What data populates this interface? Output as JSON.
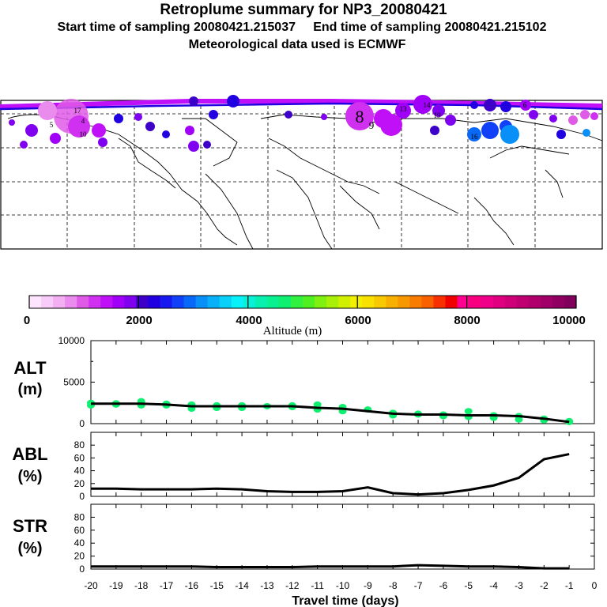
{
  "header": {
    "title": "Retroplume summary for NP3_20080421",
    "line1": "Start time of sampling 20080421.215037     End time of sampling 20080421.215102",
    "line2": "Meteorological data used is ECMWF"
  },
  "colorbar": {
    "label": "Altitude (m)",
    "ticks": [
      "0",
      "2000",
      "4000",
      "6000",
      "8000",
      "10000"
    ],
    "colors": [
      "#fde6fd",
      "#f8ccf8",
      "#f2b0f2",
      "#ea8cee",
      "#e05ae8",
      "#d030f0",
      "#c010f8",
      "#a000f8",
      "#8000f0",
      "#3c00c8",
      "#2000e0",
      "#1818f0",
      "#1040f8",
      "#0868f8",
      "#0890f8",
      "#08b0f8",
      "#08d0f8",
      "#08f0f8",
      "#08f0d8",
      "#08f0b0",
      "#08f090",
      "#10f070",
      "#30f040",
      "#50f020",
      "#80f010",
      "#a8f008",
      "#d0f000",
      "#f0f000",
      "#f8e000",
      "#f8c800",
      "#f8b000",
      "#f89800",
      "#f87c00",
      "#f86000",
      "#f83000",
      "#f00000",
      "#ff0090",
      "#f80080",
      "#f00088",
      "#e00080",
      "#d00078",
      "#c00070",
      "#b0006c",
      "#a00068",
      "#900060",
      "#80005c"
    ]
  },
  "map": {
    "labels": [
      {
        "text": "8",
        "big": true
      },
      {
        "text": "16",
        "big": false
      },
      {
        "text": "9",
        "big": false
      },
      {
        "text": "4",
        "big": false
      },
      {
        "text": "5",
        "big": false
      },
      {
        "text": "17",
        "big": false
      },
      {
        "text": "19",
        "big": false
      },
      {
        "text": "13",
        "big": false
      },
      {
        "text": "6",
        "big": false
      },
      {
        "text": "14",
        "big": false
      },
      {
        "text": "10",
        "big": false
      }
    ]
  },
  "chart_data": {
    "type": "line",
    "x": [
      -20,
      -19,
      -18,
      -17,
      -16,
      -15,
      -14,
      -13,
      -12,
      -11,
      -10,
      -9,
      -8,
      -7,
      -6,
      -5,
      -4,
      -3,
      -2,
      -1
    ],
    "xlim": [
      -20,
      0
    ],
    "xticks": [
      "-20",
      "-19",
      "-18",
      "-17",
      "-16",
      "-15",
      "-14",
      "-13",
      "-12",
      "-11",
      "-10",
      "-9",
      "-8",
      "-7",
      "-6",
      "-5",
      "-4",
      "-3",
      "-2",
      "-1",
      "0"
    ],
    "xlabel": "Travel time (days)",
    "panels": [
      {
        "name": "ALT",
        "label_line1": "ALT",
        "label_line2": "(m)",
        "ylim": [
          0,
          10000
        ],
        "yticks": [
          "10000",
          "5000",
          "0"
        ],
        "ytick_values": [
          10000,
          5000,
          0
        ],
        "series": [
          {
            "name": "mean altitude",
            "values": [
              2400,
              2400,
              2400,
              2300,
              2100,
              2100,
              2100,
              2100,
              2100,
              1900,
              1800,
              1500,
              1200,
              1100,
              1100,
              1000,
              1000,
              900,
              600,
              200
            ]
          }
        ],
        "scatter": [
          [
            -20,
            2500
          ],
          [
            -20,
            2200
          ],
          [
            -19,
            2450
          ],
          [
            -19,
            2300
          ],
          [
            -18,
            2700
          ],
          [
            -18,
            2200
          ],
          [
            -17,
            2400
          ],
          [
            -17,
            2200
          ],
          [
            -16,
            2300
          ],
          [
            -16,
            1800
          ],
          [
            -15,
            2200
          ],
          [
            -15,
            1900
          ],
          [
            -14,
            2200
          ],
          [
            -14,
            1900
          ],
          [
            -13,
            2100
          ],
          [
            -12,
            2200
          ],
          [
            -12,
            2000
          ],
          [
            -11,
            2300
          ],
          [
            -11,
            1700
          ],
          [
            -10,
            2000
          ],
          [
            -10,
            1500
          ],
          [
            -9,
            1700
          ],
          [
            -8,
            1300
          ],
          [
            -8,
            1000
          ],
          [
            -7,
            1200
          ],
          [
            -7,
            1100
          ],
          [
            -6,
            1100
          ],
          [
            -6,
            900
          ],
          [
            -5,
            1500
          ],
          [
            -5,
            800
          ],
          [
            -4,
            1000
          ],
          [
            -4,
            700
          ],
          [
            -3,
            900
          ],
          [
            -3,
            500
          ],
          [
            -2,
            600
          ],
          [
            -2,
            400
          ],
          [
            -1,
            300
          ],
          [
            -1,
            200
          ]
        ]
      },
      {
        "name": "ABL",
        "label_line1": "ABL",
        "label_line2": "(%)",
        "ylim": [
          0,
          100
        ],
        "yticks": [
          "80",
          "60",
          "40",
          "20",
          "0"
        ],
        "ytick_values": [
          80,
          60,
          40,
          20,
          0
        ],
        "series": [
          {
            "name": "ABL fraction",
            "values": [
              12,
              12,
              11,
              11,
              11,
              12,
              11,
              8,
              7,
              7,
              8,
              14,
              5,
              3,
              5,
              10,
              17,
              29,
              58,
              66
            ]
          }
        ]
      },
      {
        "name": "STR",
        "label_line1": "STR",
        "label_line2": "(%)",
        "ylim": [
          0,
          100
        ],
        "yticks": [
          "80",
          "60",
          "40",
          "20",
          "0"
        ],
        "ytick_values": [
          80,
          60,
          40,
          20,
          0
        ],
        "series": [
          {
            "name": "STR fraction",
            "values": [
              4,
              4,
              4,
              4,
              4,
              3,
              3,
              3,
              3,
              4,
              4,
              4,
              4,
              6,
              5,
              4,
              4,
              3,
              1,
              1
            ]
          }
        ]
      }
    ]
  }
}
